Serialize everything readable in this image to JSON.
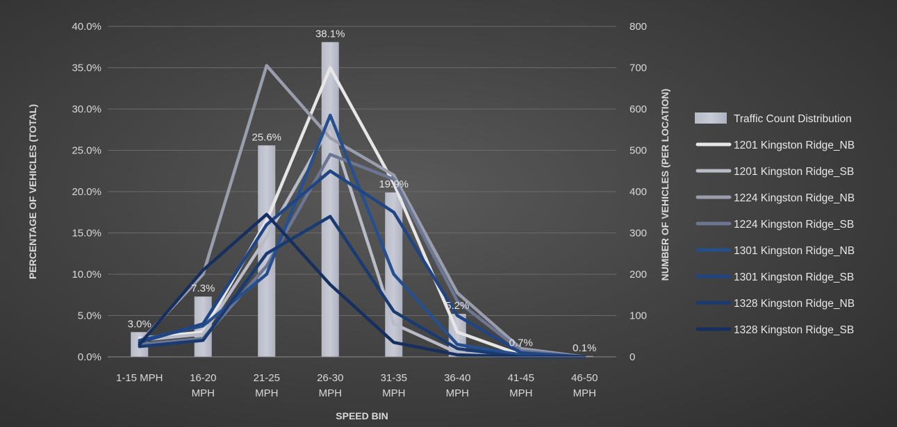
{
  "chart_data": {
    "type": "bar+line",
    "categories": [
      "1-15 MPH",
      "16-20 MPH",
      "21-25 MPH",
      "26-30 MPH",
      "31-35 MPH",
      "36-40 MPH",
      "41-45 MPH",
      "46-50 MPH"
    ],
    "category_lines": [
      [
        "1-15 MPH"
      ],
      [
        "16-20",
        "MPH"
      ],
      [
        "21-25",
        "MPH"
      ],
      [
        "26-30",
        "MPH"
      ],
      [
        "31-35",
        "MPH"
      ],
      [
        "36-40",
        "MPH"
      ],
      [
        "41-45",
        "MPH"
      ],
      [
        "46-50",
        "MPH"
      ]
    ],
    "xlabel": "SPEED BIN",
    "ylabel": "PERCENTAGE OF  VEHICLES (TOTAL)",
    "y2label": "NUMBER OF VEHICLES (PER LOCATION)",
    "ylim": [
      0,
      40
    ],
    "y2lim": [
      0,
      800
    ],
    "yticks": [
      "0.0%",
      "5.0%",
      "10.0%",
      "15.0%",
      "20.0%",
      "25.0%",
      "30.0%",
      "35.0%",
      "40.0%"
    ],
    "y2ticks": [
      "0",
      "100",
      "200",
      "300",
      "400",
      "500",
      "600",
      "700",
      "800"
    ],
    "grid": true,
    "legend_position": "right",
    "bar_series": {
      "name": "Traffic Count Distribution",
      "axis": "left",
      "values": [
        3.0,
        7.3,
        25.6,
        38.1,
        19.9,
        5.2,
        0.7,
        0.1
      ],
      "data_labels": [
        "3.0%",
        "7.3%",
        "25.6%",
        "38.1%",
        "19.9%",
        "5.2%",
        "0.7%",
        "0.1%"
      ],
      "color": "#c8cad6"
    },
    "series": [
      {
        "name": "1201 Kingston Ridge_NB",
        "axis": "right",
        "color": "#e6e6e6",
        "values": [
          45,
          60,
          330,
          700,
          420,
          60,
          5,
          0
        ]
      },
      {
        "name": "1201 Kingston Ridge_SB",
        "axis": "right",
        "color": "#b9bcc7",
        "values": [
          40,
          55,
          290,
          560,
          80,
          10,
          0,
          0
        ]
      },
      {
        "name": "1224 Kingston Ridge_NB",
        "axis": "right",
        "color": "#9a9eac",
        "values": [
          35,
          200,
          705,
          530,
          440,
          155,
          20,
          0
        ]
      },
      {
        "name": "1224 Kingston Ridge_SB",
        "axis": "right",
        "color": "#6c7591",
        "values": [
          30,
          45,
          220,
          490,
          430,
          135,
          15,
          0
        ]
      },
      {
        "name": "1301 Kingston Ridge_NB",
        "axis": "right",
        "color": "#264f8e",
        "values": [
          40,
          75,
          200,
          585,
          200,
          30,
          5,
          0
        ]
      },
      {
        "name": "1301 Kingston Ridge_SB",
        "axis": "right",
        "color": "#1f4585",
        "values": [
          35,
          80,
          320,
          450,
          350,
          100,
          10,
          0
        ]
      },
      {
        "name": "1328 Kingston Ridge_NB",
        "axis": "right",
        "color": "#1a3a72",
        "values": [
          25,
          40,
          250,
          340,
          110,
          20,
          0,
          0
        ]
      },
      {
        "name": "1328 Kingston Ridge_SB",
        "axis": "right",
        "color": "#162f5e",
        "values": [
          30,
          210,
          345,
          175,
          35,
          5,
          0,
          0
        ]
      }
    ]
  }
}
